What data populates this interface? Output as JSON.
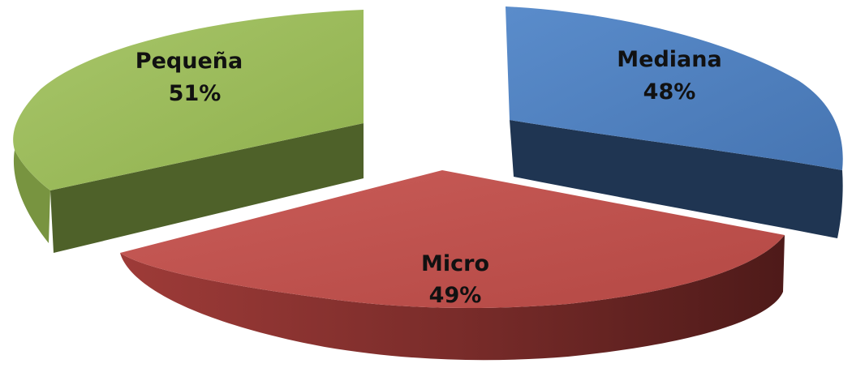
{
  "chart_data": {
    "type": "pie",
    "style": "3d-exploded",
    "title": "",
    "slices": [
      {
        "label": "Pequeña",
        "value": 51,
        "value_label": "51%",
        "color": "#9BBB59",
        "side_color": "#4F6228"
      },
      {
        "label": "Mediana",
        "value": 48,
        "value_label": "48%",
        "color": "#4F81BD",
        "side_color": "#1F3552"
      },
      {
        "label": "Micro",
        "value": 49,
        "value_label": "49%",
        "color": "#C0504D",
        "side_color": "#632523"
      }
    ]
  }
}
